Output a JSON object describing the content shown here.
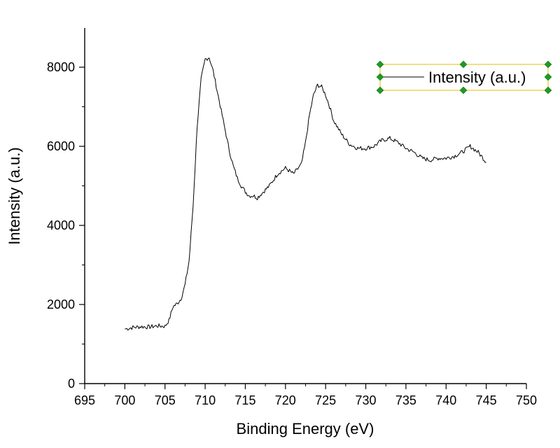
{
  "chart_data": {
    "type": "line",
    "title": "",
    "xlabel": "Binding Energy (eV)",
    "ylabel": "Intensity (a.u.)",
    "xlim": [
      695,
      750
    ],
    "ylim": [
      0,
      9000
    ],
    "xticks": [
      695,
      700,
      705,
      710,
      715,
      720,
      725,
      730,
      735,
      740,
      745,
      750
    ],
    "yticks": [
      0,
      2000,
      4000,
      6000,
      8000
    ],
    "grid": false,
    "legend_position": "top-right",
    "series": [
      {
        "name": "Intensity (a.u.)",
        "color": "#000000",
        "x": [
          700,
          701,
          702,
          703,
          704,
          705,
          705.5,
          706,
          706.5,
          707,
          707.5,
          708,
          708.5,
          709,
          709.5,
          710,
          710.5,
          711,
          711.5,
          712,
          712.5,
          713,
          713.5,
          714,
          714.5,
          715,
          715.5,
          716,
          716.5,
          717,
          718,
          719,
          720,
          721,
          722,
          722.5,
          723,
          723.5,
          724,
          724.5,
          725,
          725.5,
          726,
          727,
          728,
          729,
          730,
          731,
          732,
          733,
          734,
          735,
          736,
          737,
          738,
          739,
          740,
          741,
          742,
          743,
          744,
          745
        ],
        "y": [
          1380,
          1420,
          1440,
          1430,
          1460,
          1450,
          1600,
          1950,
          2020,
          2150,
          2500,
          3100,
          4500,
          6500,
          7700,
          8200,
          8250,
          7900,
          7400,
          6900,
          6400,
          5900,
          5500,
          5200,
          5000,
          4850,
          4750,
          4750,
          4700,
          4800,
          5000,
          5300,
          5450,
          5300,
          5550,
          6100,
          6800,
          7300,
          7550,
          7500,
          7300,
          7000,
          6650,
          6300,
          6050,
          5950,
          5950,
          6000,
          6150,
          6200,
          6100,
          5950,
          5850,
          5700,
          5650,
          5700,
          5700,
          5750,
          5850,
          6000,
          5850,
          5600
        ]
      }
    ]
  }
}
